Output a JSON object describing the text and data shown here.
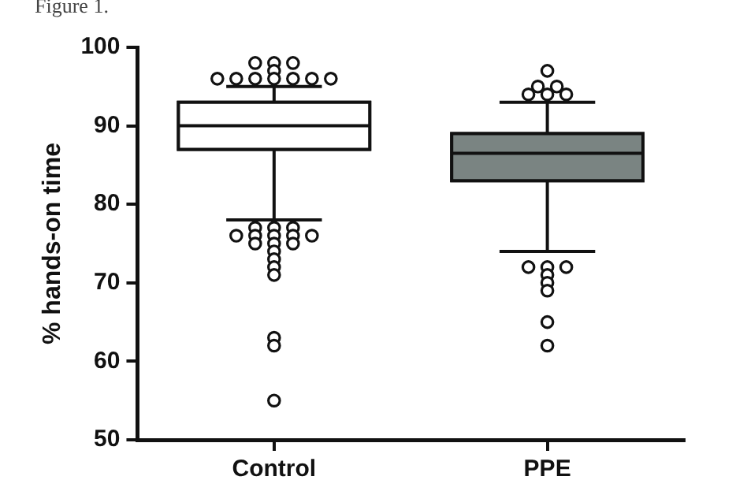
{
  "chart_data": {
    "type": "box",
    "annotations": [
      "Figure 1."
    ],
    "ylabel": "% hands-on time",
    "categories": [
      "Control",
      "PPE"
    ],
    "colors": [
      "#ffffff",
      "#7a8482"
    ],
    "boxes": [
      {
        "low": 78,
        "q1": 87,
        "median": 90,
        "q3": 93,
        "high": 95,
        "outliers": [
          98,
          98,
          98,
          97,
          96,
          96,
          96,
          96,
          96,
          96,
          96,
          77,
          77,
          77,
          76,
          76,
          76,
          76,
          76,
          75,
          75,
          75,
          74,
          73,
          72,
          71,
          63,
          62,
          55
        ]
      },
      {
        "low": 74,
        "q1": 83,
        "median": 86.5,
        "q3": 89,
        "high": 93,
        "outliers": [
          97,
          95,
          95,
          94,
          94,
          94,
          72,
          72,
          72,
          71,
          70,
          69,
          65,
          62
        ]
      }
    ],
    "ylim": [
      50,
      100
    ],
    "yticks": [
      50,
      60,
      70,
      80,
      90,
      100
    ],
    "grid": false,
    "legend": false
  }
}
